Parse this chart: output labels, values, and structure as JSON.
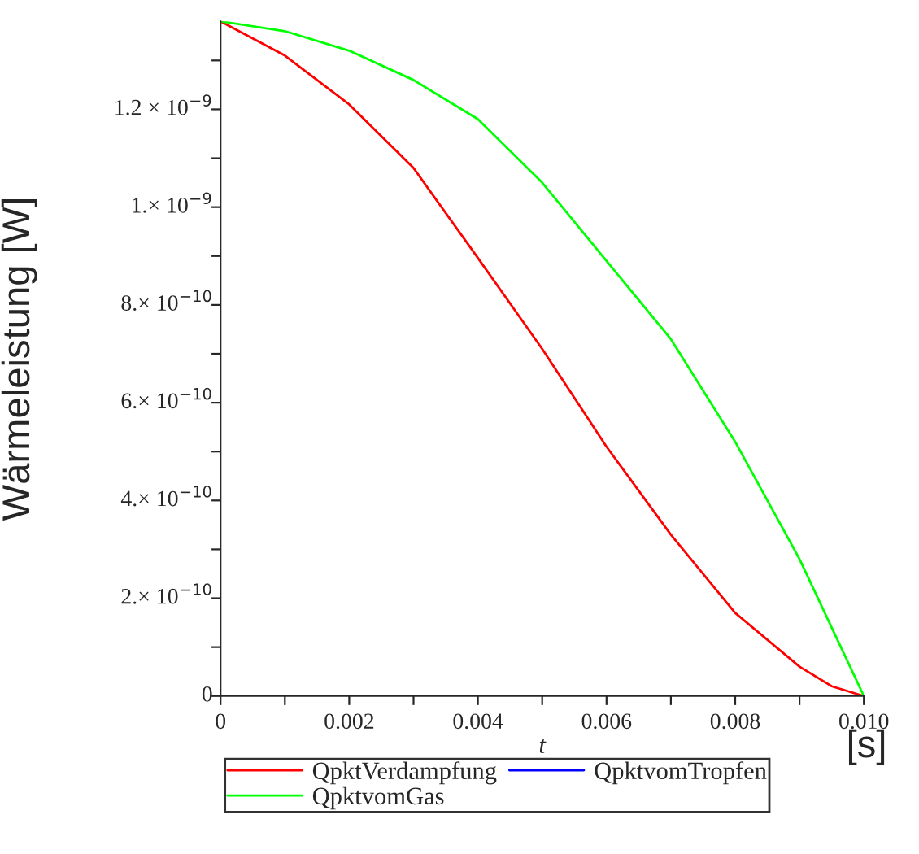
{
  "chart_data": {
    "type": "line",
    "xlabel": "t",
    "ylabel": "Wärmeleistung [W]",
    "annotations": [
      "[s]"
    ],
    "x": [
      0,
      0.001,
      0.002,
      0.003,
      0.004,
      0.005,
      0.006,
      0.007,
      0.008,
      0.009,
      0.0095,
      0.01
    ],
    "series": [
      {
        "name": "QpktVerdampfung",
        "color": "#ff0000",
        "values": [
          1.38e-09,
          1.31e-09,
          1.21e-09,
          1.08e-09,
          8.96e-10,
          7.1e-10,
          5.1e-10,
          3.3e-10,
          1.7e-10,
          6e-11,
          2e-11,
          0
        ]
      },
      {
        "name": "QpktvomTropfen",
        "color": "#0000ff",
        "values": [
          null,
          null,
          null,
          null,
          null,
          null,
          null,
          null,
          null,
          null,
          null,
          null
        ]
      },
      {
        "name": "QpktvomGas",
        "color": "#00ff00",
        "values": [
          1.38e-09,
          1.36e-09,
          1.32e-09,
          1.26e-09,
          1.18e-09,
          1.05e-09,
          8.9e-10,
          7.3e-10,
          5.2e-10,
          2.8e-10,
          1.4e-10,
          0
        ]
      }
    ],
    "xlim": [
      0,
      0.01
    ],
    "ylim": [
      0,
      1.38e-09
    ],
    "xticks": [
      0,
      {
        "value": 0.001,
        "label": null
      },
      0.002,
      {
        "value": 0.003,
        "label": null
      },
      0.004,
      {
        "value": 0.005,
        "label": null
      },
      0.006,
      {
        "value": 0.007,
        "label": null
      },
      0.008,
      {
        "value": 0.009,
        "label": null
      },
      {
        "value": 0.01,
        "label": "0.010"
      }
    ],
    "yticks": [
      0,
      {
        "value": 1e-10,
        "label": null
      },
      {
        "value": 2e-10,
        "label": "2.× 10$^{−10}$"
      },
      {
        "value": 3e-10,
        "label": null
      },
      {
        "value": 4e-10,
        "label": "4.× 10$^{−10}$"
      },
      {
        "value": 5e-10,
        "label": null
      },
      {
        "value": 6e-10,
        "label": "6.× 10$^{−10}$"
      },
      {
        "value": 7e-10,
        "label": null
      },
      {
        "value": 8e-10,
        "label": "8.× 10$^{−10}$"
      },
      {
        "value": 9e-10,
        "label": null
      },
      {
        "value": 1e-09,
        "label": "1.× 10$^{−9}$"
      },
      {
        "value": 1.1e-09,
        "label": null
      },
      {
        "value": 1.2e-09,
        "label": "1.2 × 10$^{−9}$"
      },
      {
        "value": 1.3e-09,
        "label": null
      }
    ],
    "legend": "bottom",
    "grid": false,
    "marker": "none",
    "line_style": "solid"
  }
}
